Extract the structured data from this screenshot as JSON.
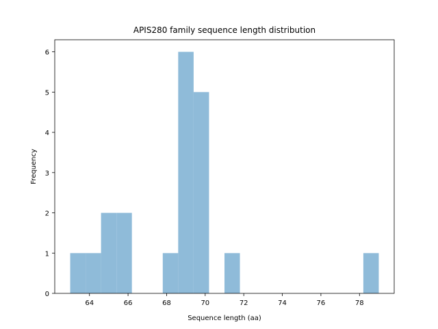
{
  "chart_data": {
    "type": "bar",
    "title": "APIS280 family sequence length distribution",
    "xlabel": "Sequence length (aa)",
    "ylabel": "Frequency",
    "bins": [
      {
        "start": 63.0,
        "end": 63.8,
        "count": 1
      },
      {
        "start": 63.8,
        "end": 64.6,
        "count": 1
      },
      {
        "start": 64.6,
        "end": 65.4,
        "count": 2
      },
      {
        "start": 65.4,
        "end": 66.2,
        "count": 2
      },
      {
        "start": 66.2,
        "end": 67.0,
        "count": 0
      },
      {
        "start": 67.0,
        "end": 67.8,
        "count": 0
      },
      {
        "start": 67.8,
        "end": 68.6,
        "count": 1
      },
      {
        "start": 68.6,
        "end": 69.4,
        "count": 6
      },
      {
        "start": 69.4,
        "end": 70.2,
        "count": 5
      },
      {
        "start": 70.2,
        "end": 71.0,
        "count": 0
      },
      {
        "start": 71.0,
        "end": 71.8,
        "count": 1
      },
      {
        "start": 71.8,
        "end": 72.6,
        "count": 0
      },
      {
        "start": 72.6,
        "end": 73.4,
        "count": 0
      },
      {
        "start": 73.4,
        "end": 74.2,
        "count": 0
      },
      {
        "start": 74.2,
        "end": 75.0,
        "count": 0
      },
      {
        "start": 75.0,
        "end": 75.8,
        "count": 0
      },
      {
        "start": 75.8,
        "end": 76.6,
        "count": 0
      },
      {
        "start": 76.6,
        "end": 77.4,
        "count": 0
      },
      {
        "start": 77.4,
        "end": 78.2,
        "count": 0
      },
      {
        "start": 78.2,
        "end": 79.0,
        "count": 1
      }
    ],
    "xticks": [
      64,
      66,
      68,
      70,
      72,
      74,
      76,
      78
    ],
    "yticks": [
      0,
      1,
      2,
      3,
      4,
      5,
      6
    ],
    "xlim": [
      62.2,
      79.8
    ],
    "ylim": [
      0,
      6.3
    ],
    "bar_color": "#8fbbd9",
    "grid": false,
    "legend": "none"
  }
}
